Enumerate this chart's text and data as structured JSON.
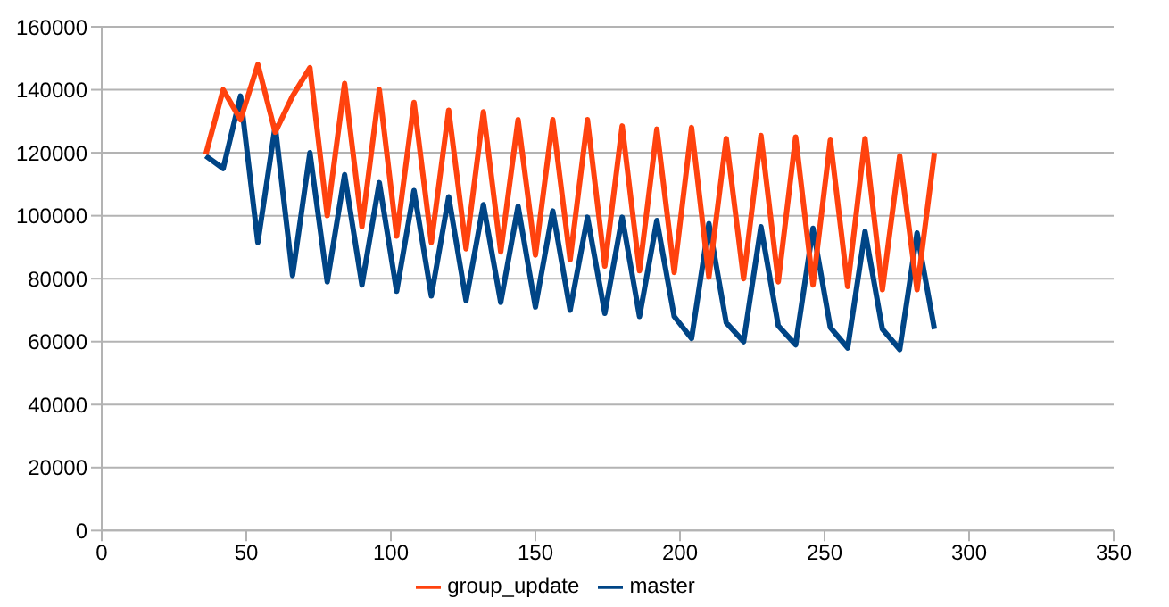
{
  "chart_data": {
    "type": "line",
    "x": [
      36,
      42,
      48,
      54,
      60,
      66,
      72,
      78,
      84,
      90,
      96,
      102,
      108,
      114,
      120,
      126,
      132,
      138,
      144,
      150,
      156,
      162,
      168,
      174,
      180,
      186,
      192,
      198,
      204,
      210,
      216,
      222,
      228,
      234,
      240,
      246,
      252,
      258,
      264,
      270,
      276,
      282,
      288
    ],
    "series": [
      {
        "name": "master",
        "color": "#004586",
        "values": [
          119000,
          115000,
          138000,
          91500,
          128500,
          81000,
          120000,
          79000,
          113000,
          78000,
          110500,
          76000,
          108000,
          74500,
          106000,
          73000,
          103500,
          72500,
          103000,
          71000,
          101500,
          70000,
          99500,
          69000,
          99500,
          68000,
          98500,
          68000,
          61000,
          97500,
          66000,
          60000,
          96500,
          65000,
          59000,
          96000,
          64500,
          58000,
          95000,
          64000,
          57500,
          94500,
          64000
        ]
      },
      {
        "name": "group_update",
        "color": "#ff420e",
        "values": [
          119500,
          140000,
          130500,
          148000,
          126500,
          138000,
          147000,
          100000,
          142000,
          96500,
          140000,
          93500,
          136000,
          91500,
          133500,
          89500,
          133000,
          88500,
          130500,
          87500,
          130500,
          86000,
          130500,
          84000,
          128500,
          82500,
          127500,
          82000,
          128000,
          80500,
          124500,
          80000,
          125500,
          79000,
          125000,
          78000,
          124000,
          77500,
          124500,
          76500,
          119000,
          76500,
          120000
        ]
      }
    ],
    "xlim": [
      0,
      350
    ],
    "xticks": [
      0,
      50,
      100,
      150,
      200,
      250,
      300,
      350
    ],
    "ylim": [
      0,
      160000
    ],
    "yticks": [
      0,
      20000,
      40000,
      60000,
      80000,
      100000,
      120000,
      140000,
      160000
    ],
    "grid": "y",
    "legend": "bottom",
    "marker": "none",
    "line_style": "solid"
  }
}
